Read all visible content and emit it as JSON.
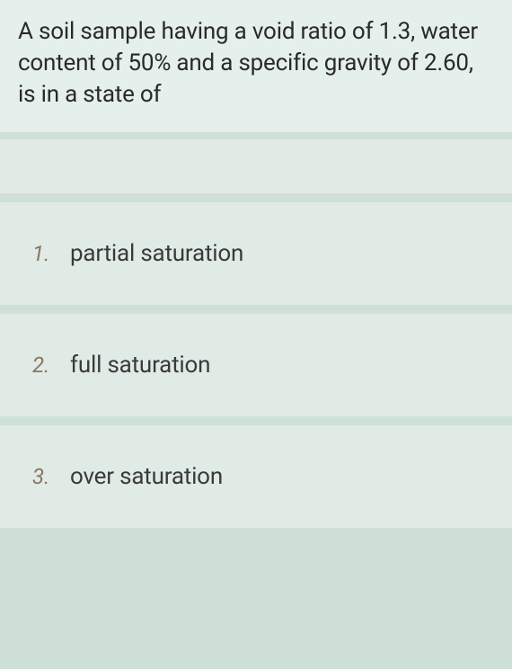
{
  "question": {
    "text": "A soil sample having a void ratio of 1.3, water content of 50% and a specific gravity of 2.60, is in a state of"
  },
  "options": [
    {
      "number": "1.",
      "text": "partial saturation"
    },
    {
      "number": "2.",
      "text": "full saturation"
    },
    {
      "number": "3.",
      "text": "over saturation"
    }
  ],
  "colors": {
    "page_bg": "#cfe0d8",
    "question_bg": "#e5efeb",
    "option_bg": "#e0ebe6",
    "question_text": "#2a2a2a",
    "option_number": "#8a7560",
    "option_text": "#3a3a3a"
  },
  "typography": {
    "question_fontsize": 26,
    "option_number_fontsize": 24,
    "option_text_fontsize": 26
  }
}
